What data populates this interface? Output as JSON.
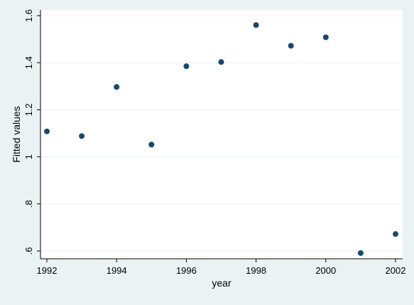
{
  "chart_data": {
    "type": "scatter",
    "xlabel": "year",
    "ylabel": "Fitted values",
    "xlim": [
      1992,
      2002
    ],
    "ylim": [
      0.58,
      1.62
    ],
    "x_ticks": [
      1992,
      1994,
      1996,
      1998,
      2000,
      2002
    ],
    "x_tick_labels": [
      "1992",
      "1994",
      "1996",
      "1998",
      "2000",
      "2002"
    ],
    "y_ticks": [
      0.6,
      0.8,
      1.0,
      1.2,
      1.4,
      1.6
    ],
    "y_tick_labels": [
      ".6",
      ".8",
      "1",
      "1.2",
      "1.4",
      "1.6"
    ],
    "grid": true,
    "series": [
      {
        "points": [
          {
            "x": 1992,
            "y": 1.108
          },
          {
            "x": 1993,
            "y": 1.088
          },
          {
            "x": 1994,
            "y": 1.297
          },
          {
            "x": 1995,
            "y": 1.052
          },
          {
            "x": 1996,
            "y": 1.385
          },
          {
            "x": 1997,
            "y": 1.403
          },
          {
            "x": 1998,
            "y": 1.56
          },
          {
            "x": 1999,
            "y": 1.472
          },
          {
            "x": 2000,
            "y": 1.508
          },
          {
            "x": 2001,
            "y": 0.591
          },
          {
            "x": 2002,
            "y": 0.672
          }
        ]
      }
    ],
    "colors": {
      "background": "#eaf2f3",
      "plot_background": "#ffffff",
      "marker": "#1a476f",
      "grid": "#eaf2f3"
    }
  }
}
